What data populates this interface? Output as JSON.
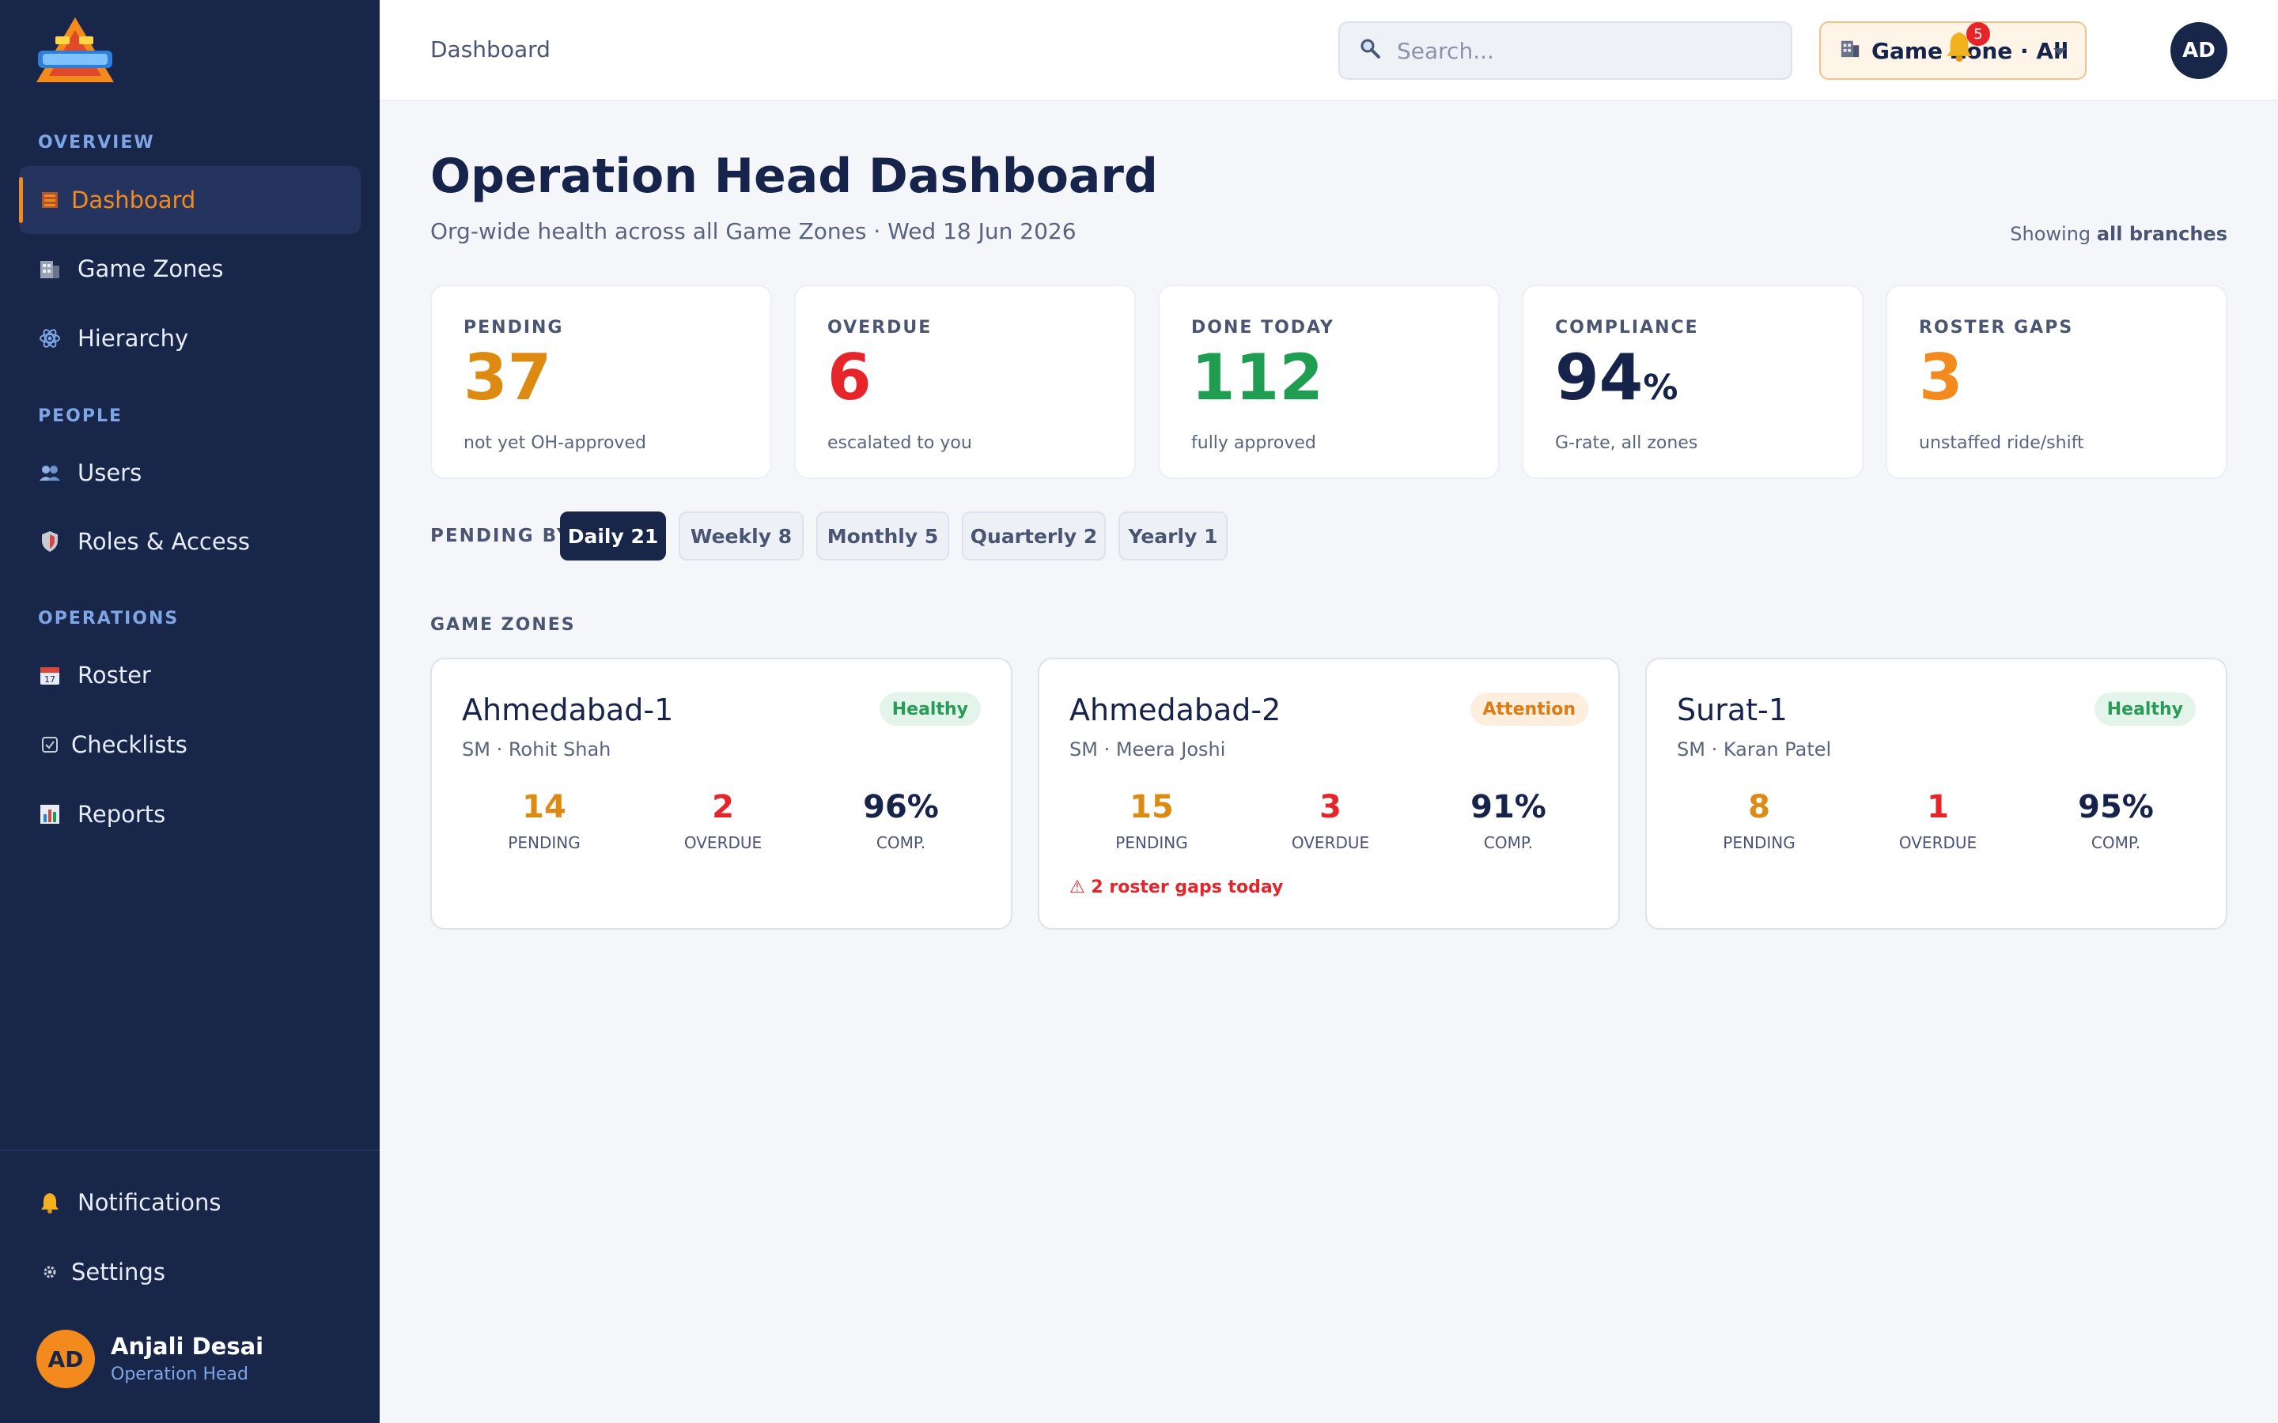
{
  "sidebar": {
    "sections": {
      "overview": "OVERVIEW",
      "people": "PEOPLE",
      "operations": "OPERATIONS"
    },
    "items": {
      "dashboard": "Dashboard",
      "game_zones": "Game Zones",
      "hierarchy": "Hierarchy",
      "users": "Users",
      "roles": "Roles & Access",
      "roster": "Roster",
      "checklists": "Checklists",
      "reports": "Reports",
      "notifications": "Notifications",
      "settings": "Settings"
    },
    "user": {
      "initials": "AD",
      "name": "Anjali Desai",
      "role": "Operation Head"
    }
  },
  "topbar": {
    "breadcrumb": "Dashboard",
    "search_placeholder": "Search...",
    "zone_select": "Game Zone · All",
    "notification_count": "5",
    "avatar_initials": "AD"
  },
  "page": {
    "title": "Operation Head Dashboard",
    "subtitle": "Org-wide health across all Game Zones · Wed 18 Jun 2026",
    "showing_prefix": "Showing",
    "showing_value": "all branches"
  },
  "stats": [
    {
      "label": "PENDING",
      "value": "37",
      "unit": "",
      "sub": "not yet OH-approved",
      "color": "#dd8a12"
    },
    {
      "label": "OVERDUE",
      "value": "6",
      "unit": "",
      "sub": "escalated to you",
      "color": "#e5252a"
    },
    {
      "label": "DONE TODAY",
      "value": "112",
      "unit": "",
      "sub": "fully approved",
      "color": "#1f9e52"
    },
    {
      "label": "COMPLIANCE",
      "value": "94",
      "unit": "%",
      "sub": "G-rate, all zones",
      "color": "#16234a"
    },
    {
      "label": "ROSTER GAPS",
      "value": "3",
      "unit": "",
      "sub": "unstaffed ride/shift",
      "color": "#f28a1e"
    }
  ],
  "pending_by": {
    "label": "PENDING BY",
    "pills": [
      "Daily 21",
      "Weekly 8",
      "Monthly 5",
      "Quarterly 2",
      "Yearly 1"
    ]
  },
  "zones": {
    "label": "GAME ZONES",
    "cards": [
      {
        "name": "Ahmedabad-1",
        "sm": "SM · Rohit Shah",
        "status": "Healthy",
        "pending": "14",
        "overdue": "2",
        "comp": "96%",
        "warning": ""
      },
      {
        "name": "Ahmedabad-2",
        "sm": "SM · Meera Joshi",
        "status": "Attention",
        "pending": "15",
        "overdue": "3",
        "comp": "91%",
        "warning": "⚠ 2 roster gaps today"
      },
      {
        "name": "Surat-1",
        "sm": "SM · Karan Patel",
        "status": "Healthy",
        "pending": "8",
        "overdue": "1",
        "comp": "95%",
        "warning": ""
      }
    ],
    "metric_labels": {
      "pending": "PENDING",
      "overdue": "OVERDUE",
      "comp": "COMP."
    }
  },
  "colors": {
    "sidebar_bg": "#182649",
    "accent": "#f28a1e",
    "danger": "#e5252a",
    "success": "#1f9e52"
  }
}
